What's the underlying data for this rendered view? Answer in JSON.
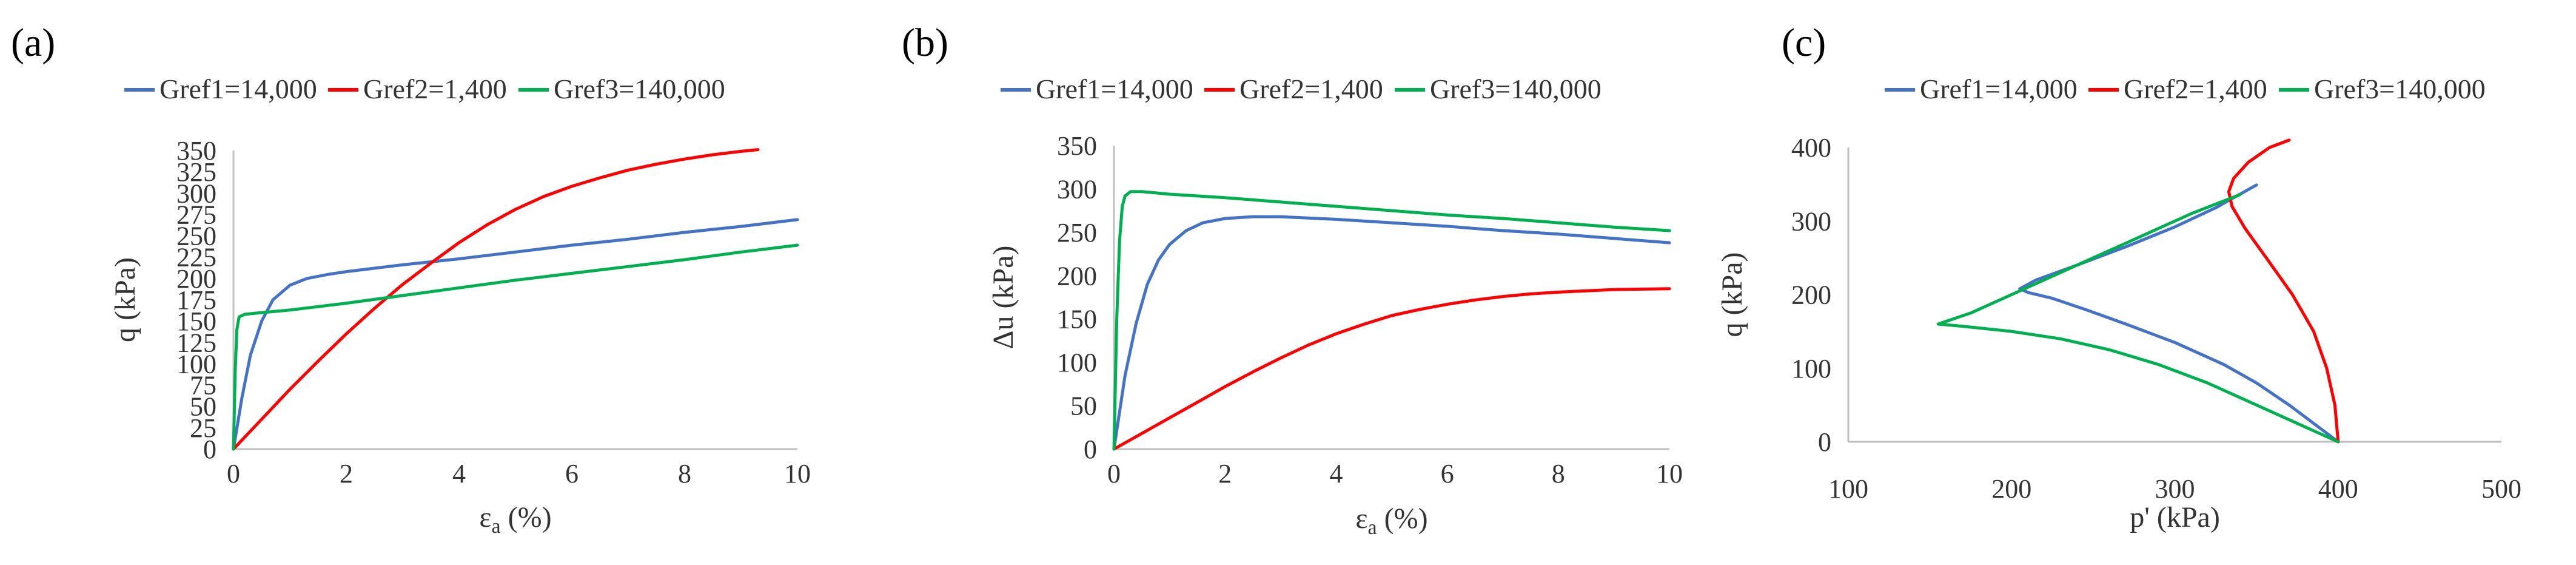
{
  "chart_data": [
    {
      "id": "a",
      "type": "line",
      "panel_label": "(a)",
      "xlabel": "εa (%)",
      "xlabel_main": "ε",
      "xlabel_sub": "a",
      "xlabel_tail": " (%)",
      "ylabel": "q (kPa)",
      "xlim": [
        0,
        10
      ],
      "ylim": [
        0,
        350
      ],
      "xticks": [
        0,
        2,
        4,
        6,
        8,
        10
      ],
      "yticks": [
        0,
        25,
        50,
        75,
        100,
        125,
        150,
        175,
        200,
        225,
        250,
        275,
        300,
        325,
        350
      ],
      "legend_position": "top",
      "series": [
        {
          "name": "Gref1=14,000",
          "color": "#4472c4",
          "points": [
            [
              0,
              0
            ],
            [
              0.15,
              60
            ],
            [
              0.3,
              110
            ],
            [
              0.5,
              150
            ],
            [
              0.7,
              175
            ],
            [
              1,
              192
            ],
            [
              1.3,
              200
            ],
            [
              1.7,
              205
            ],
            [
              2,
              208
            ],
            [
              3,
              216
            ],
            [
              4,
              223
            ],
            [
              5,
              231
            ],
            [
              6,
              239
            ],
            [
              7,
              246
            ],
            [
              8,
              254
            ],
            [
              9,
              261
            ],
            [
              10,
              269
            ]
          ]
        },
        {
          "name": "Gref2=1,400",
          "color": "#ff0000",
          "points": [
            [
              0,
              0
            ],
            [
              0.5,
              35
            ],
            [
              1,
              70
            ],
            [
              1.5,
              103
            ],
            [
              2,
              135
            ],
            [
              2.5,
              165
            ],
            [
              3,
              193
            ],
            [
              3.5,
              218
            ],
            [
              4,
              242
            ],
            [
              4.5,
              263
            ],
            [
              5,
              281
            ],
            [
              5.5,
              296
            ],
            [
              6,
              308
            ],
            [
              6.5,
              318
            ],
            [
              7,
              327
            ],
            [
              7.5,
              334
            ],
            [
              8,
              340
            ],
            [
              8.5,
              345
            ],
            [
              9,
              349
            ],
            [
              9.3,
              351
            ]
          ]
        },
        {
          "name": "Gref3=140,000",
          "color": "#00b050",
          "points": [
            [
              0,
              0
            ],
            [
              0.03,
              90
            ],
            [
              0.06,
              140
            ],
            [
              0.1,
              155
            ],
            [
              0.2,
              158
            ],
            [
              0.5,
              160
            ],
            [
              1,
              163
            ],
            [
              2,
              171
            ],
            [
              3,
              180
            ],
            [
              4,
              189
            ],
            [
              5,
              198
            ],
            [
              6,
              206
            ],
            [
              7,
              214
            ],
            [
              8,
              222
            ],
            [
              9,
              231
            ],
            [
              10,
              239
            ]
          ]
        }
      ]
    },
    {
      "id": "b",
      "type": "line",
      "panel_label": "(b)",
      "xlabel": "εa (%)",
      "xlabel_main": "ε",
      "xlabel_sub": "a",
      "xlabel_tail": " (%)",
      "ylabel": "Δu (kPa)",
      "xlim": [
        0,
        10
      ],
      "ylim": [
        0,
        350
      ],
      "xticks": [
        0,
        2,
        4,
        6,
        8,
        10
      ],
      "yticks": [
        0,
        50,
        100,
        150,
        200,
        250,
        300,
        350
      ],
      "legend_position": "top",
      "series": [
        {
          "name": "Gref1=14,000",
          "color": "#4472c4",
          "points": [
            [
              0,
              0
            ],
            [
              0.2,
              85
            ],
            [
              0.4,
              145
            ],
            [
              0.6,
              190
            ],
            [
              0.8,
              218
            ],
            [
              1,
              236
            ],
            [
              1.3,
              252
            ],
            [
              1.6,
              261
            ],
            [
              2,
              266
            ],
            [
              2.5,
              268
            ],
            [
              3,
              268
            ],
            [
              4,
              265
            ],
            [
              5,
              261
            ],
            [
              6,
              257
            ],
            [
              7,
              252
            ],
            [
              8,
              248
            ],
            [
              9,
              243
            ],
            [
              10,
              238
            ]
          ]
        },
        {
          "name": "Gref2=1,400",
          "color": "#ff0000",
          "points": [
            [
              0,
              0
            ],
            [
              0.5,
              18
            ],
            [
              1,
              36
            ],
            [
              1.5,
              54
            ],
            [
              2,
              72
            ],
            [
              2.5,
              89
            ],
            [
              3,
              105
            ],
            [
              3.5,
              120
            ],
            [
              4,
              133
            ],
            [
              4.5,
              144
            ],
            [
              5,
              154
            ],
            [
              5.5,
              161
            ],
            [
              6,
              167
            ],
            [
              6.5,
              172
            ],
            [
              7,
              176
            ],
            [
              7.5,
              179
            ],
            [
              8,
              181
            ],
            [
              9,
              184
            ],
            [
              10,
              185
            ]
          ]
        },
        {
          "name": "Gref3=140,000",
          "color": "#00b050",
          "points": [
            [
              0,
              0
            ],
            [
              0.05,
              150
            ],
            [
              0.1,
              240
            ],
            [
              0.15,
              280
            ],
            [
              0.2,
              292
            ],
            [
              0.3,
              297
            ],
            [
              0.5,
              297
            ],
            [
              1,
              294
            ],
            [
              2,
              290
            ],
            [
              3,
              285
            ],
            [
              4,
              280
            ],
            [
              5,
              275
            ],
            [
              6,
              270
            ],
            [
              7,
              266
            ],
            [
              8,
              261
            ],
            [
              9,
              256
            ],
            [
              10,
              252
            ]
          ]
        }
      ]
    },
    {
      "id": "c",
      "type": "line",
      "panel_label": "(c)",
      "xlabel": "p' (kPa)",
      "ylabel": "q (kPa)",
      "xlim": [
        100,
        500
      ],
      "ylim": [
        0,
        400
      ],
      "xticks": [
        100,
        200,
        300,
        400,
        500
      ],
      "yticks": [
        0,
        100,
        200,
        300,
        400
      ],
      "legend_position": "top",
      "series": [
        {
          "name": "Gref1=14,000",
          "color": "#4472c4",
          "points": [
            [
              400,
              0
            ],
            [
              385,
              25
            ],
            [
              370,
              50
            ],
            [
              350,
              80
            ],
            [
              330,
              105
            ],
            [
              300,
              135
            ],
            [
              270,
              160
            ],
            [
              245,
              180
            ],
            [
              225,
              195
            ],
            [
              210,
              203
            ],
            [
              205,
              208
            ],
            [
              215,
              220
            ],
            [
              240,
              240
            ],
            [
              270,
              265
            ],
            [
              300,
              292
            ],
            [
              325,
              318
            ],
            [
              350,
              349
            ]
          ]
        },
        {
          "name": "Gref2=1,400",
          "color": "#ff0000",
          "points": [
            [
              400,
              0
            ],
            [
              398,
              50
            ],
            [
              393,
              100
            ],
            [
              385,
              150
            ],
            [
              372,
              200
            ],
            [
              356,
              250
            ],
            [
              343,
              290
            ],
            [
              335,
              320
            ],
            [
              333,
              340
            ],
            [
              336,
              358
            ],
            [
              345,
              380
            ],
            [
              358,
              400
            ],
            [
              370,
              410
            ]
          ]
        },
        {
          "name": "Gref3=140,000",
          "color": "#00b050",
          "points": [
            [
              400,
              0
            ],
            [
              380,
              20
            ],
            [
              350,
              50
            ],
            [
              320,
              80
            ],
            [
              290,
              105
            ],
            [
              260,
              125
            ],
            [
              230,
              140
            ],
            [
              200,
              150
            ],
            [
              170,
              157
            ],
            [
              155,
              160
            ],
            [
              175,
              175
            ],
            [
              205,
              205
            ],
            [
              240,
              240
            ],
            [
              275,
              275
            ],
            [
              310,
              310
            ],
            [
              340,
              336
            ]
          ]
        }
      ]
    }
  ]
}
